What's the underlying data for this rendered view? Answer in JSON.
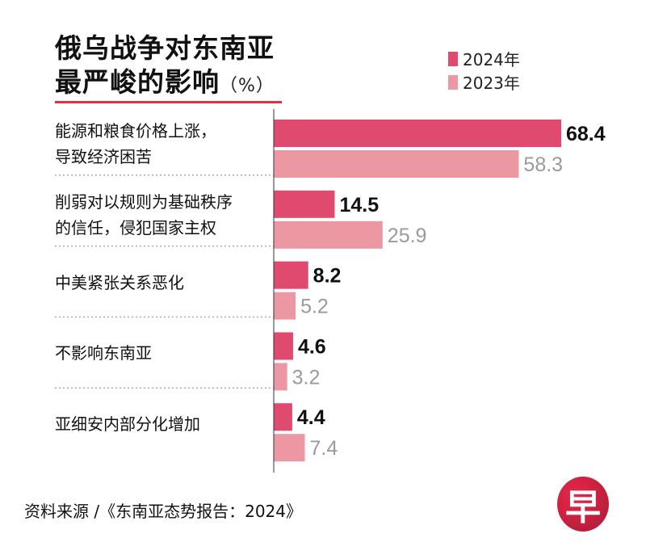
{
  "chart_data": {
    "type": "bar",
    "orientation": "horizontal",
    "title": "俄乌战争对东南亚最严峻的影响",
    "title_line1": "俄乌战争对东南亚",
    "title_line2": "最严峻的影响",
    "unit": "（%）",
    "categories": [
      [
        "能源和粮食价格上涨，",
        "导致经济困苦"
      ],
      [
        "削弱对以规则为基础秩序",
        "的信任，侵犯国家主权"
      ],
      [
        "中美紧张关系恶化"
      ],
      [
        "不影响东南亚"
      ],
      [
        "亚细安内部分化增加"
      ]
    ],
    "series": [
      {
        "name": "2024年",
        "color": "#e04a6e",
        "label_color": "#111111",
        "values": [
          68.4,
          14.5,
          8.2,
          4.6,
          4.4
        ]
      },
      {
        "name": "2023年",
        "color": "#ec98a2",
        "label_color": "#9a9a9a",
        "values": [
          58.3,
          25.9,
          5.2,
          3.2,
          7.4
        ]
      }
    ],
    "xlim": [
      0,
      68.4
    ],
    "legend_position": "top-right",
    "grid": false
  },
  "source": "资料来源 /《东南亚态势报告：2024》",
  "logo": {
    "text": "早",
    "color": "#c8213f"
  }
}
